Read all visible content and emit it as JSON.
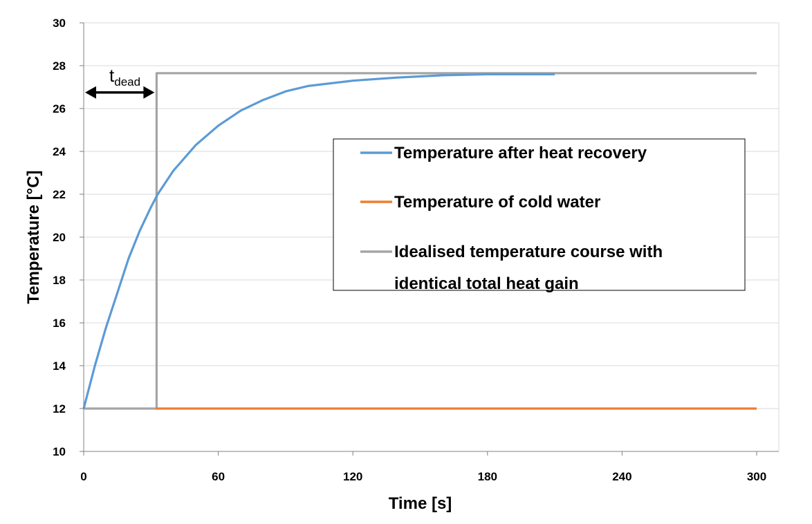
{
  "chart_data": {
    "type": "line",
    "xlabel": "Time [s]",
    "ylabel": "Temperature [°C]",
    "xlim": [
      0,
      300
    ],
    "ylim": [
      10,
      30
    ],
    "x_ticks": [
      "0",
      "60",
      "120",
      "180",
      "240",
      "300"
    ],
    "y_ticks": [
      "10",
      "12",
      "14",
      "16",
      "18",
      "20",
      "22",
      "24",
      "26",
      "28",
      "30"
    ],
    "grid": "horizontal",
    "legend_position": "center-right",
    "series": [
      {
        "name": "Temperature after heat recovery",
        "color": "#5b9bd5",
        "x": [
          0,
          5,
          10,
          15,
          20,
          25,
          30,
          33,
          40,
          50,
          60,
          70,
          80,
          90,
          100,
          120,
          140,
          160,
          180,
          200,
          210
        ],
        "y": [
          12.0,
          14.0,
          15.8,
          17.4,
          19.0,
          20.3,
          21.4,
          22.0,
          23.1,
          24.3,
          25.2,
          25.9,
          26.4,
          26.8,
          27.05,
          27.3,
          27.45,
          27.55,
          27.6,
          27.6,
          27.6
        ]
      },
      {
        "name": "Temperature of cold water",
        "color": "#ed7d31",
        "x": [
          32,
          300
        ],
        "y": [
          12.0,
          12.0
        ]
      },
      {
        "name": "Idealised temperature course with identical total heat gain",
        "color": "#a5a5a5",
        "x": [
          0,
          32.5,
          32.5,
          300
        ],
        "y": [
          12.0,
          12.0,
          27.65,
          27.65
        ]
      }
    ],
    "annotations": [
      {
        "base": "t",
        "subscript": "dead",
        "x_from": 0,
        "x_to": 32.5,
        "y": 26.75
      }
    ],
    "legend_lines": [
      [
        "Temperature after heat recovery"
      ],
      [
        "Temperature of cold water"
      ],
      [
        "Idealised temperature course with",
        "identical total heat gain"
      ]
    ]
  }
}
